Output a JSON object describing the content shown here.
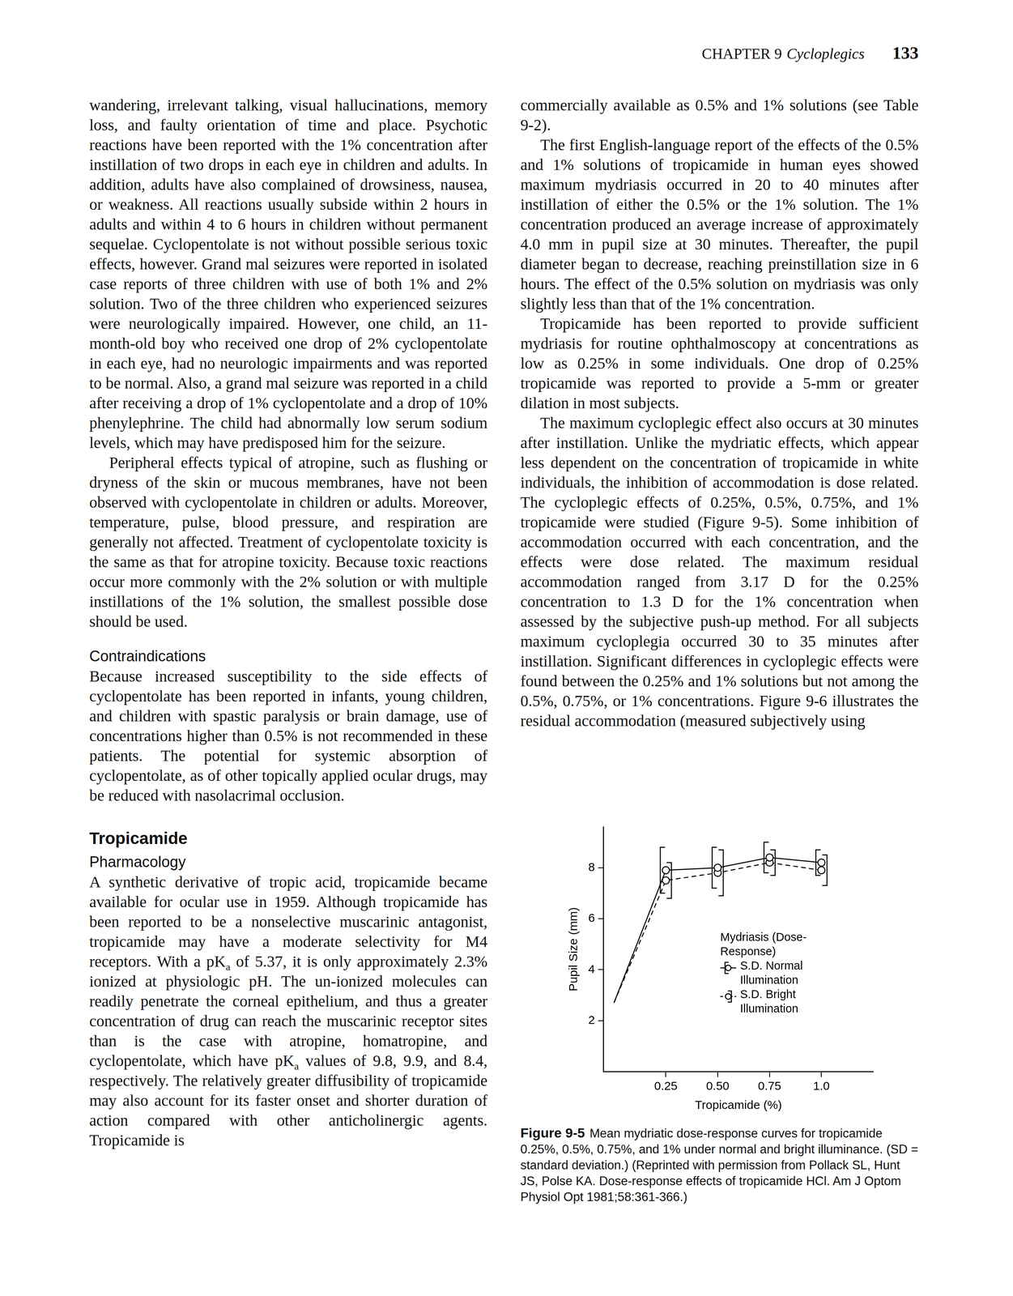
{
  "header": {
    "chapter": "CHAPTER 9",
    "chapter_title": "Cycloplegics",
    "page": 133
  },
  "columns": [
    [
      {
        "type": "paragraph",
        "indent": false,
        "text": "wandering, irrelevant talking, visual hallucinations, memory loss, and faulty orientation of time and place. Psychotic reactions have been reported with the 1% concentration after instillation of two drops in each eye in children and adults. In addition, adults have also complained of drowsiness, nausea, or weakness. All reactions usually subside within 2 hours in adults and within 4 to 6 hours in children without permanent sequelae. Cyclopentolate is not without possible serious toxic effects, however. Grand mal seizures were reported in isolated case reports of three children with use of both 1% and 2% solution. Two of the three children who experienced seizures were neurologically impaired. However, one child, an 11-month-old boy who received one drop of 2% cyclopentolate in each eye, had no neurologic impairments and was reported to be normal. Also, a grand mal seizure was reported in a child after receiving a drop of 1% cyclopentolate and a drop of 10% phenylephrine. The child had abnormally low serum sodium levels, which may have predisposed him for the seizure."
      },
      {
        "type": "paragraph",
        "indent": true,
        "text": "Peripheral effects typical of atropine, such as flushing or dryness of the skin or mucous membranes, have not been observed with cyclopentolate in children or adults. Moreover, temperature, pulse, blood pressure, and respiration are generally not affected. Treatment of cyclopentolate toxicity is the same as that for atropine toxicity. Because toxic reactions occur more commonly with the 2% solution or with multiple instillations of the 1% solution, the smallest possible dose should be used."
      },
      {
        "type": "subheading",
        "text": "Contraindications"
      },
      {
        "type": "paragraph",
        "indent": false,
        "text": "Because increased susceptibility to the side effects of cyclopentolate has been reported in infants, young children, and children with spastic paralysis or brain damage, use of concentrations higher than 0.5% is not recommended in these patients. The potential for systemic absorption of cyclopentolate, as of other topically applied ocular drugs, may be reduced with nasolacrimal occlusion."
      },
      {
        "type": "heading",
        "text": "Tropicamide"
      },
      {
        "type": "subheading",
        "text": "Pharmacology"
      },
      {
        "type": "paragraph",
        "indent": false,
        "text": [
          "A synthetic derivative of tropic acid, tropicamide became available for ocular use in 1959. Although tropicamide has been reported to be a nonselective muscarinic antagonist, tropicamide may have a moderate selectivity for M4 receptors. With a pK",
          {
            "sub": "a"
          },
          " of 5.37, it is only approximately 2.3% ionized at physiologic pH. The un-ionized molecules can readily penetrate the corneal epithelium, and thus a greater concentration of drug can reach the muscarinic receptor sites than is the case with atropine, homatropine, and cyclopentolate, which have pK",
          {
            "sub": "a"
          },
          " values of 9.8, 9.9, and 8.4, respectively. The relatively greater diffusibility of tropicamide may also account for its faster onset and shorter duration of action compared with other anticholinergic agents. Tropicamide is"
        ]
      }
    ],
    [
      {
        "type": "paragraph",
        "indent": false,
        "text": "commercially available as 0.5% and 1% solutions (see Table 9-2)."
      },
      {
        "type": "paragraph",
        "indent": true,
        "text": "The first English-language report of the effects of the 0.5% and 1% solutions of tropicamide in human eyes showed maximum mydriasis occurred in 20 to 40 minutes after instillation of either the 0.5% or the 1% solution. The 1% concentration produced an average increase of approximately 4.0 mm in pupil size at 30 minutes. Thereafter, the pupil diameter began to decrease, reaching preinstillation size in 6 hours. The effect of the 0.5% solution on mydriasis was only slightly less than that of the 1% concentration."
      },
      {
        "type": "paragraph",
        "indent": true,
        "text": "Tropicamide has been reported to provide sufficient mydriasis for routine ophthalmoscopy at concentrations as low as 0.25% in some individuals. One drop of 0.25% tropicamide was reported to provide a 5-mm or greater dilation in most subjects."
      },
      {
        "type": "paragraph",
        "indent": true,
        "text": "The maximum cycloplegic effect also occurs at 30 minutes after instillation. Unlike the mydriatic effects, which appear less dependent on the concentration of tropicamide in white individuals, the inhibition of accommodation is dose related. The cycloplegic effects of 0.25%, 0.5%, 0.75%, and 1% tropicamide were studied (Figure 9-5). Some inhibition of accommodation occurred with each concentration, and the effects were dose related. The maximum residual accommodation ranged from 3.17 D for the 0.25% concentration to 1.3 D for the 1% concentration when assessed by the subjective push-up method. For all subjects maximum cycloplegia occurred 30 to 35 minutes after instillation. Significant differences in cycloplegic effects were found between the 0.25% and 1% solutions but not among the 0.5%, 0.75%, or 1% concentrations. Figure 9-6 illustrates the residual accommodation (measured subjectively using"
      }
    ]
  ],
  "figure_caption": {
    "label": "Figure 9-5",
    "text": "Mean mydriatic dose-response curves for tropicamide 0.25%, 0.5%, 0.75%, and 1% under normal and bright illuminance. (SD = standard deviation.) (Reprinted with permission from Pollack SL, Hunt JS, Polse KA. Dose-response effects of tropicamide HCl. Am J Optom Physiol Opt 1981;58:361-366.)"
  },
  "chart_data": {
    "type": "line",
    "x_label": "Tropicamide (%)",
    "y_label": "Pupil Size (mm)",
    "legend_title": "Mydriasis (Dose-Response)",
    "x": [
      0,
      0.25,
      0.5,
      0.75,
      1
    ],
    "series": [
      {
        "name": "S.D. Normal Illumination",
        "color": "#000000",
        "marker": "circle",
        "line_style": "solid",
        "values": [
          2.7,
          7.9,
          8.0,
          8.4,
          8.2
        ],
        "error": [
          null,
          0.9,
          0.8,
          0.6,
          0.5
        ]
      },
      {
        "name": "S.D. Bright Illumination",
        "color": "#000000",
        "marker": "circle",
        "line_style": "dashed",
        "values": [
          2.7,
          7.5,
          7.8,
          8.2,
          7.9
        ],
        "error": [
          null,
          0.7,
          0.9,
          0.5,
          0.6
        ]
      }
    ],
    "xlim": [
      -0.05,
      1.25
    ],
    "xticks": [
      0.25,
      {
        "value": 0.5,
        "label": "0.50"
      },
      0.75,
      {
        "value": 1,
        "label": "1.0"
      }
    ],
    "ylim": [
      0,
      9.6
    ],
    "yticks": [
      2,
      4,
      6,
      8
    ],
    "grid": false,
    "legend": "right"
  }
}
